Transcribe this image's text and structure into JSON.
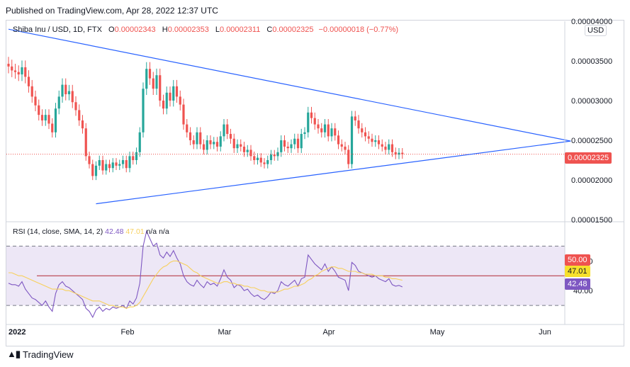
{
  "publisher": "Published on TradingView.com, Apr 28, 2022 12:37 UTC",
  "legend": {
    "symbol": "Shiba Inu / USD, 1D, FTX",
    "open_label": "O",
    "open": "0.00002343",
    "high_label": "H",
    "high": "0.00002353",
    "low_label": "L",
    "low": "0.00002311",
    "close_label": "C",
    "close": "0.00002325",
    "change": "−0.00000018 (−0.77%)"
  },
  "currency": "USD",
  "price_tag": "0.00002325",
  "rsi_legend": {
    "name": "RSI (14, close, SMA, 14, 2)",
    "rsi": "42.48",
    "sma": "47.01",
    "na1": "n/a",
    "na2": "n/a"
  },
  "rsi_tags": {
    "mid": "50.00",
    "sma": "47.01",
    "rsi": "42.48"
  },
  "brand": "TradingView",
  "colors": {
    "up": "#26a69a",
    "down": "#ef5350",
    "trend": "#2962ff",
    "rsi": "#7e57c2",
    "sma": "#f7d05c",
    "rsi_band": "#ede7f6"
  },
  "chart_data": [
    {
      "type": "candlestick",
      "title": "Shiba Inu / USD, 1D, FTX",
      "y_ticks": [
        "0.00001500",
        "0.00002000",
        "0.00002500",
        "0.00003000",
        "0.00003500",
        "0.00004000"
      ],
      "ylim": [
        1.5e-05,
        4e-05
      ],
      "x_ticks": [
        "2022",
        "Feb",
        "Mar",
        "Apr",
        "May",
        "Jun"
      ],
      "close": [
        3.43e-05,
        3.38e-05,
        3.36e-05,
        3.33e-05,
        3.42e-05,
        3.3e-05,
        3.18e-05,
        3.05e-05,
        2.94e-05,
        2.82e-05,
        2.75e-05,
        2.82e-05,
        2.71e-05,
        2.6e-05,
        2.9e-05,
        3.05e-05,
        3.2e-05,
        3.08e-05,
        3.12e-05,
        2.98e-05,
        2.88e-05,
        2.75e-05,
        2.65e-05,
        2.3e-05,
        2.2e-05,
        2.05e-05,
        2.18e-05,
        2.25e-05,
        2.12e-05,
        2.2e-05,
        2.15e-05,
        2.22e-05,
        2.18e-05,
        2.2e-05,
        2.25e-05,
        2.15e-05,
        2.3e-05,
        2.25e-05,
        2.35e-05,
        2.6e-05,
        3.15e-05,
        3.4e-05,
        3.28e-05,
        3.15e-05,
        3.32e-05,
        3e-05,
        2.9e-05,
        3.1e-05,
        3e-05,
        3.18e-05,
        3.05e-05,
        2.95e-05,
        2.7e-05,
        2.6e-05,
        2.5e-05,
        2.45e-05,
        2.6e-05,
        2.45e-05,
        2.38e-05,
        2.5e-05,
        2.45e-05,
        2.48e-05,
        2.42e-05,
        2.55e-05,
        2.7e-05,
        2.58e-05,
        2.52e-05,
        2.4e-05,
        2.45e-05,
        2.42e-05,
        2.35e-05,
        2.38e-05,
        2.3e-05,
        2.25e-05,
        2.28e-05,
        2.22e-05,
        2.2e-05,
        2.25e-05,
        2.32e-05,
        2.3e-05,
        2.35e-05,
        2.5e-05,
        2.42e-05,
        2.4e-05,
        2.45e-05,
        2.52e-05,
        2.4e-05,
        2.58e-05,
        2.6e-05,
        2.85e-05,
        2.78e-05,
        2.7e-05,
        2.65e-05,
        2.6e-05,
        2.7e-05,
        2.55e-05,
        2.65e-05,
        2.56e-05,
        2.45e-05,
        2.42e-05,
        2.38e-05,
        2.2e-05,
        2.8e-05,
        2.75e-05,
        2.65e-05,
        2.6e-05,
        2.55e-05,
        2.52e-05,
        2.48e-05,
        2.5e-05,
        2.45e-05,
        2.42e-05,
        2.38e-05,
        2.45e-05,
        2.35e-05,
        2.32e-05,
        2.343e-05,
        2.325e-05
      ],
      "last_price": "0.00002325",
      "trendlines": [
        {
          "name": "upper",
          "from": [
            0,
            3.9e-05
          ],
          "to": [
            167,
            2.49e-05
          ]
        },
        {
          "name": "lower",
          "from": [
            26,
            1.7e-05
          ],
          "to": [
            167,
            2.49e-05
          ]
        }
      ]
    },
    {
      "type": "line",
      "title": "RSI (14, close, SMA, 14, 2)",
      "y_ticks": [
        "40.00",
        "60.00"
      ],
      "ylim": [
        20,
        85
      ],
      "series": [
        {
          "name": "RSI",
          "values": [
            45,
            44,
            44,
            43,
            46,
            41,
            38,
            35,
            34,
            32,
            30,
            33,
            29,
            26,
            38,
            44,
            46,
            43,
            42,
            40,
            38,
            36,
            34,
            28,
            26,
            22,
            27,
            29,
            26,
            28,
            27,
            29,
            28,
            29,
            30,
            28,
            33,
            31,
            35,
            45,
            70,
            80,
            75,
            70,
            72,
            64,
            62,
            66,
            63,
            67,
            62,
            58,
            50,
            46,
            44,
            43,
            47,
            44,
            42,
            46,
            44,
            45,
            43,
            48,
            54,
            49,
            47,
            42,
            44,
            43,
            40,
            41,
            38,
            36,
            37,
            35,
            34,
            36,
            39,
            38,
            40,
            46,
            44,
            43,
            45,
            47,
            43,
            48,
            49,
            64,
            61,
            58,
            56,
            54,
            58,
            53,
            56,
            53,
            49,
            48,
            47,
            40,
            59,
            57,
            53,
            52,
            51,
            50,
            49,
            50,
            48,
            47,
            46,
            48,
            44,
            43,
            43.5,
            42.48
          ]
        },
        {
          "name": "SMA",
          "values": [
            52,
            52,
            51,
            50,
            50,
            49,
            48,
            47,
            46,
            45,
            44,
            43,
            42,
            41,
            41,
            41,
            41,
            40,
            40,
            39,
            38,
            37,
            36,
            35,
            34,
            33,
            33,
            33,
            32,
            31,
            30,
            30,
            29,
            29,
            29,
            28,
            29,
            29,
            30,
            32,
            36,
            40,
            44,
            48,
            51,
            54,
            56,
            57,
            59,
            60,
            60,
            59,
            58,
            57,
            55,
            53,
            52,
            50,
            49,
            48,
            47,
            46,
            45,
            45,
            46,
            46,
            45,
            45,
            44,
            44,
            43,
            43,
            42,
            42,
            41,
            40,
            40,
            39,
            39,
            39,
            39,
            40,
            41,
            41,
            42,
            43,
            43,
            44,
            45,
            47,
            48,
            50,
            51,
            53,
            54,
            55,
            56,
            56,
            55,
            55,
            54,
            53,
            53,
            53,
            52,
            52,
            51,
            51,
            51,
            50,
            50,
            50,
            49,
            49,
            48,
            48,
            47.5,
            47.01
          ]
        }
      ],
      "reference_lines": [
        70,
        50,
        30
      ],
      "last_values": {
        "rsi": "42.48",
        "sma": "47.01",
        "mid": "50.00"
      }
    }
  ]
}
